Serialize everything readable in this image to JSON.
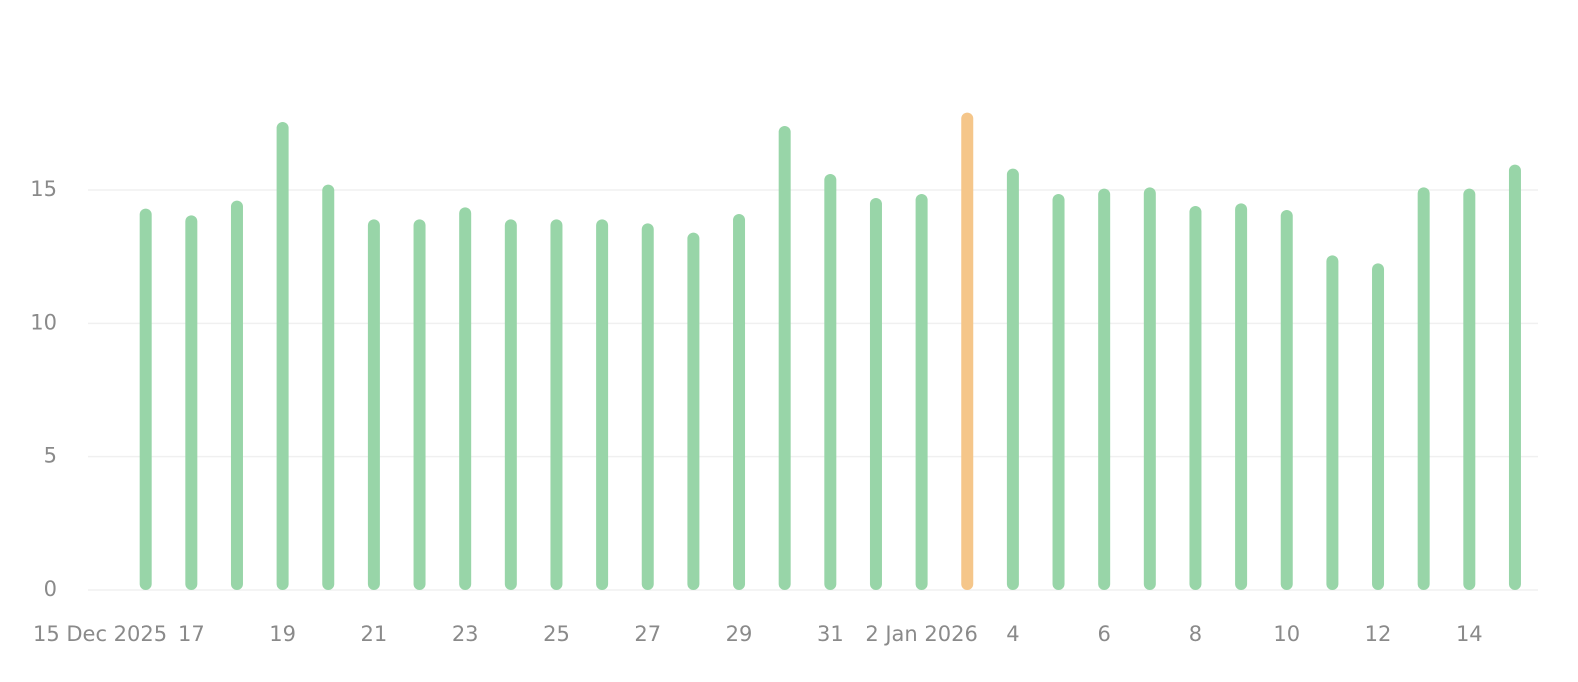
{
  "chart_data": {
    "type": "bar",
    "x": [
      "2025-12-16",
      "2025-12-17",
      "2025-12-18",
      "2025-12-19",
      "2025-12-20",
      "2025-12-21",
      "2025-12-22",
      "2025-12-23",
      "2025-12-24",
      "2025-12-25",
      "2025-12-26",
      "2025-12-27",
      "2025-12-28",
      "2025-12-29",
      "2025-12-30",
      "2025-12-31",
      "2026-01-01",
      "2026-01-02",
      "2026-01-03",
      "2026-01-04",
      "2026-01-05",
      "2026-01-06",
      "2026-01-07",
      "2026-01-08",
      "2026-01-09",
      "2026-01-10",
      "2026-01-11",
      "2026-01-12",
      "2026-01-13",
      "2026-01-14",
      "2026-01-15"
    ],
    "values": [
      14.3,
      14.05,
      14.6,
      17.55,
      15.2,
      13.9,
      13.9,
      14.35,
      13.9,
      13.9,
      13.9,
      13.75,
      13.4,
      14.1,
      17.4,
      15.6,
      14.7,
      14.85,
      17.9,
      15.8,
      14.85,
      15.05,
      15.1,
      14.4,
      14.5,
      14.25,
      12.55,
      12.25,
      15.1,
      15.05,
      15.95
    ],
    "colors": [
      "#98d5a8",
      "#98d5a8",
      "#98d5a8",
      "#98d5a8",
      "#98d5a8",
      "#98d5a8",
      "#98d5a8",
      "#98d5a8",
      "#98d5a8",
      "#98d5a8",
      "#98d5a8",
      "#98d5a8",
      "#98d5a8",
      "#98d5a8",
      "#98d5a8",
      "#98d5a8",
      "#98d5a8",
      "#98d5a8",
      "#f5c68a",
      "#98d5a8",
      "#98d5a8",
      "#98d5a8",
      "#98d5a8",
      "#98d5a8",
      "#98d5a8",
      "#98d5a8",
      "#98d5a8",
      "#98d5a8",
      "#98d5a8",
      "#98d5a8",
      "#98d5a8"
    ],
    "xlim": [
      "2025-12-14",
      "2026-01-16"
    ],
    "xticks": [
      {
        "value": "2025-12-15",
        "label": "15 Dec 2025"
      },
      {
        "value": "2025-12-17",
        "label": "17"
      },
      {
        "value": "2025-12-19",
        "label": "19"
      },
      {
        "value": "2025-12-21",
        "label": "21"
      },
      {
        "value": "2025-12-23",
        "label": "23"
      },
      {
        "value": "2025-12-25",
        "label": "25"
      },
      {
        "value": "2025-12-27",
        "label": "27"
      },
      {
        "value": "2025-12-29",
        "label": "29"
      },
      {
        "value": "2025-12-31",
        "label": "31"
      },
      {
        "value": "2026-01-02",
        "label": "2 Jan 2026"
      },
      {
        "value": "2026-01-04",
        "label": "4"
      },
      {
        "value": "2026-01-06",
        "label": "6"
      },
      {
        "value": "2026-01-08",
        "label": "8"
      },
      {
        "value": "2026-01-10",
        "label": "10"
      },
      {
        "value": "2026-01-12",
        "label": "12"
      },
      {
        "value": "2026-01-14",
        "label": "14"
      }
    ],
    "ylim": [
      0,
      18.75
    ],
    "yticks": [
      0,
      5,
      10,
      15
    ],
    "grid": true
  }
}
